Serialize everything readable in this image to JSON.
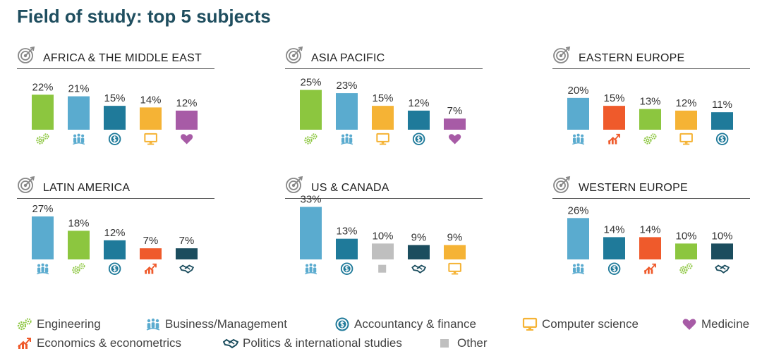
{
  "header": {
    "title": "Field of study: top 5 subjects"
  },
  "colors": {
    "engineering": "#8cc63f",
    "business": "#5aabcf",
    "accountancy": "#1f7a9a",
    "computer": "#f5b335",
    "medicine": "#a75ba6",
    "economics": "#ef5a2b",
    "politics": "#1b4d5e",
    "other": "#bfbfbf"
  },
  "icons": {
    "engineering": "gears-icon",
    "business": "people-icon",
    "accountancy": "dollar-coin-icon",
    "computer": "monitor-icon",
    "medicine": "heart-icon",
    "economics": "growth-arrow-icon",
    "politics": "handshake-icon",
    "other": "square-icon"
  },
  "legend": [
    {
      "key": "engineering",
      "label": "Engineering"
    },
    {
      "key": "business",
      "label": "Business/Management"
    },
    {
      "key": "accountancy",
      "label": "Accountancy & finance"
    },
    {
      "key": "computer",
      "label": "Computer science"
    },
    {
      "key": "medicine",
      "label": "Medicine"
    },
    {
      "key": "economics",
      "label": "Economics & econometrics"
    },
    {
      "key": "politics",
      "label": "Politics & international studies"
    },
    {
      "key": "other",
      "label": "Other"
    }
  ],
  "chart_data": [
    {
      "type": "bar",
      "title": "AFRICA & THE MIDDLE EAST",
      "ylim": [
        0,
        35
      ],
      "categories": [
        "engineering",
        "business",
        "accountancy",
        "computer",
        "medicine"
      ],
      "values": [
        22,
        21,
        15,
        14,
        12
      ],
      "labels": [
        "22%",
        "21%",
        "15%",
        "14%",
        "12%"
      ]
    },
    {
      "type": "bar",
      "title": "ASIA PACIFIC",
      "ylim": [
        0,
        35
      ],
      "categories": [
        "engineering",
        "business",
        "computer",
        "accountancy",
        "medicine"
      ],
      "values": [
        25,
        23,
        15,
        12,
        7
      ],
      "labels": [
        "25%",
        "23%",
        "15%",
        "12%",
        "7%"
      ]
    },
    {
      "type": "bar",
      "title": "EASTERN EUROPE",
      "ylim": [
        0,
        35
      ],
      "categories": [
        "business",
        "economics",
        "engineering",
        "computer",
        "accountancy"
      ],
      "values": [
        20,
        15,
        13,
        12,
        11
      ],
      "labels": [
        "20%",
        "15%",
        "13%",
        "12%",
        "11%"
      ]
    },
    {
      "type": "bar",
      "title": "LATIN AMERICA",
      "ylim": [
        0,
        35
      ],
      "categories": [
        "business",
        "engineering",
        "accountancy",
        "economics",
        "politics"
      ],
      "values": [
        27,
        18,
        12,
        7,
        7
      ],
      "labels": [
        "27%",
        "18%",
        "12%",
        "7%",
        "7%"
      ]
    },
    {
      "type": "bar",
      "title": "US & CANADA",
      "ylim": [
        0,
        35
      ],
      "categories": [
        "business",
        "accountancy",
        "other",
        "politics",
        "computer"
      ],
      "values": [
        33,
        13,
        10,
        9,
        9
      ],
      "labels": [
        "33%",
        "13%",
        "10%",
        "9%",
        "9%"
      ]
    },
    {
      "type": "bar",
      "title": "WESTERN EUROPE",
      "ylim": [
        0,
        35
      ],
      "categories": [
        "business",
        "accountancy",
        "economics",
        "engineering",
        "politics"
      ],
      "values": [
        26,
        14,
        14,
        10,
        10
      ],
      "labels": [
        "26%",
        "14%",
        "14%",
        "10%",
        "10%"
      ]
    }
  ]
}
